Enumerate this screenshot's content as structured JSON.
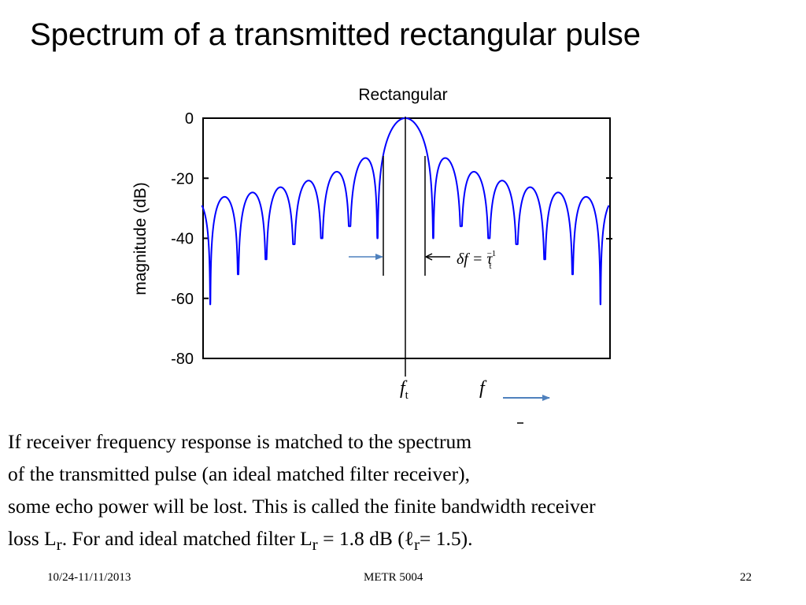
{
  "slide": {
    "title": "Spectrum of a transmitted rectangular pulse"
  },
  "chart_data": {
    "type": "line",
    "title": "Rectangular",
    "xlabel": "",
    "ylabel": "magnitude (dB)",
    "ylim": [
      -80,
      0
    ],
    "yticks": [
      0,
      -20,
      -40,
      -60,
      -80
    ],
    "ytick_labels": [
      "0",
      "-20",
      "-40",
      "-60",
      "-80"
    ],
    "xlim": [
      -7.3,
      7.3
    ],
    "grid": false,
    "series": [
      {
        "color": "#0000ff",
        "function": "20*log10(|sin(pi*x)/(pi*x)|)",
        "x_range": [
          -7.3,
          7.3
        ],
        "floor_db": -80
      }
    ],
    "null_depths_db": [
      {
        "x": -7,
        "db": -62
      },
      {
        "x": -6,
        "db": -52
      },
      {
        "x": -5,
        "db": -47
      },
      {
        "x": -4,
        "db": -42
      },
      {
        "x": -3,
        "db": -40
      },
      {
        "x": -2,
        "db": -36
      },
      {
        "x": -1,
        "db": -40
      },
      {
        "x": 1,
        "db": -40
      },
      {
        "x": 2,
        "db": -36
      },
      {
        "x": 3,
        "db": -40
      },
      {
        "x": 4,
        "db": -42
      },
      {
        "x": 5,
        "db": -47
      },
      {
        "x": 6,
        "db": -52
      },
      {
        "x": 7,
        "db": -62
      }
    ],
    "annotations": {
      "center_label": "f",
      "center_sub": "t",
      "axis_label": "f",
      "width_label": "δf = τ",
      "width_sub": "t",
      "width_sup": "−1"
    },
    "colors": {
      "trace": "#0000ff",
      "arrow": "#4f81bd"
    }
  },
  "body": {
    "line1": "If receiver frequency response is matched to the spectrum",
    "line2": "of the transmitted pulse (an ideal matched filter receiver),",
    "line3": "some echo power will be lost. This is called the finite bandwidth receiver",
    "line4_a": "loss L",
    "line4_b": "r",
    "line4_c": ". For and ideal matched filter L",
    "line4_d": "r",
    "line4_e": " = 1.8 dB (ℓ",
    "line4_f": "r",
    "line4_g": "= 1.5)."
  },
  "footer": {
    "date": "10/24-11/11/2013",
    "course": "METR 5004",
    "page": "22"
  }
}
